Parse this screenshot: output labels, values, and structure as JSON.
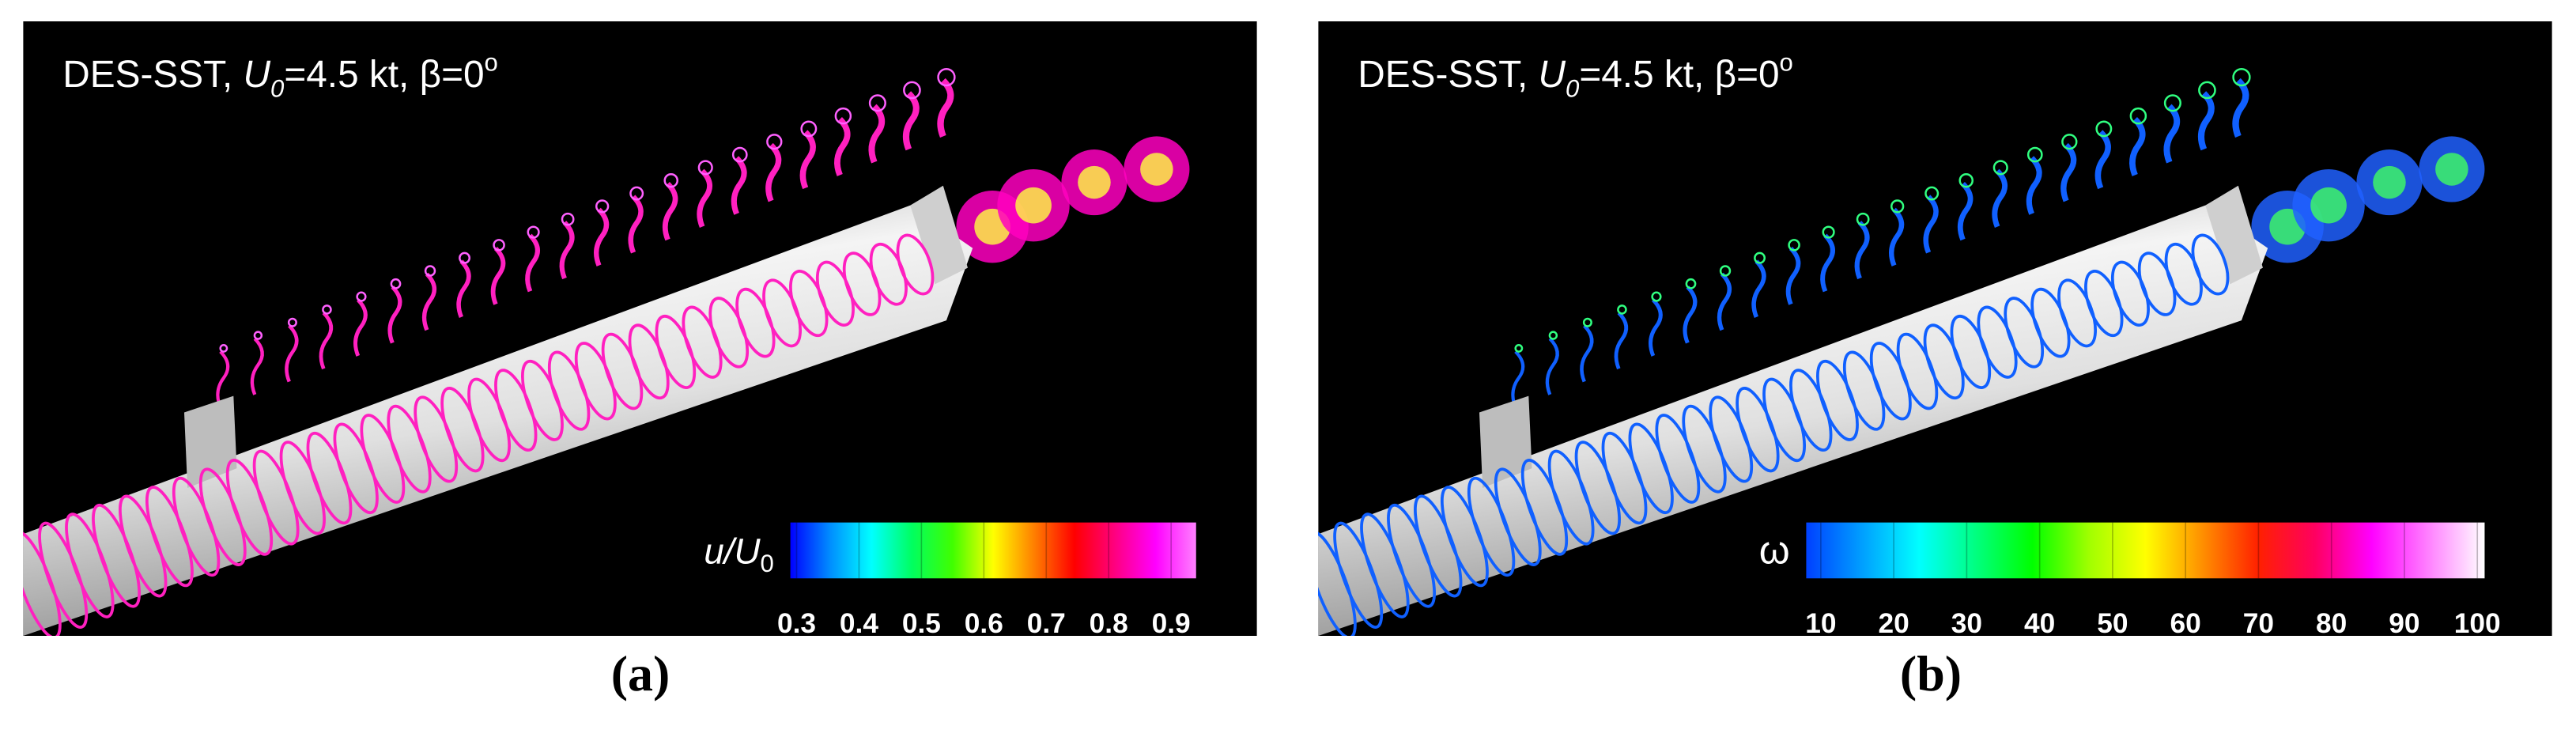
{
  "panels": [
    {
      "title_prefix": "DES-SST, ",
      "title_var": "U",
      "title_sub": "0",
      "title_rest": "=4.5 kt, β=0",
      "title_sup": "o",
      "colorbar": {
        "label": "u/U",
        "label_sub": "0",
        "lim": [
          0.29,
          0.94
        ],
        "ticks": [
          0.3,
          0.4,
          0.5,
          0.6,
          0.7,
          0.8,
          0.9
        ],
        "colors": [
          "#0000ff",
          "#0090ff",
          "#00ffff",
          "#00ff60",
          "#40ff00",
          "#ffff00",
          "#ff8000",
          "#ff0000",
          "#ff0080",
          "#ff00ff",
          "#ff80ff"
        ]
      },
      "ring_color": "#ff20c0",
      "caption": "(a)"
    },
    {
      "title_prefix": "DES-SST, ",
      "title_var": "U",
      "title_sub": "0",
      "title_rest": "=4.5 kt, β=0",
      "title_sup": "o",
      "colorbar": {
        "label": "ω",
        "lim": [
          8,
          101
        ],
        "ticks": [
          10,
          20,
          30,
          40,
          50,
          60,
          70,
          80,
          90,
          100
        ],
        "colors": [
          "#0040ff",
          "#00a0ff",
          "#00ffff",
          "#00ff80",
          "#00ff00",
          "#a0ff00",
          "#ffff00",
          "#ff9000",
          "#ff2000",
          "#ff0060",
          "#ff00ff",
          "#ff80ff",
          "#ffffff"
        ]
      },
      "ring_color": "#1060ff",
      "caption": "(b)"
    }
  ]
}
